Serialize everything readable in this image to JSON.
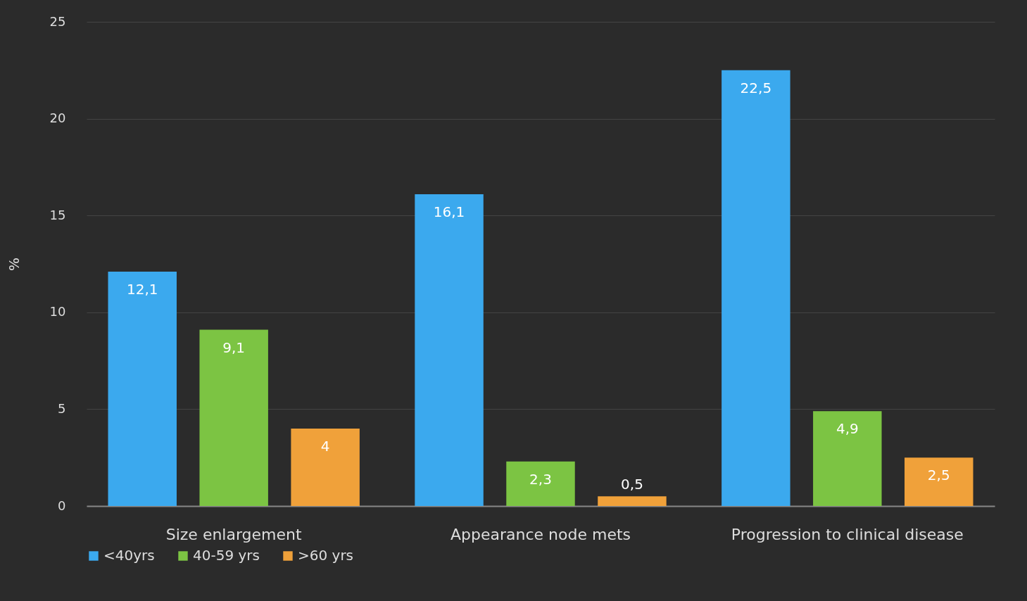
{
  "chart_data": {
    "type": "bar",
    "ylabel": "%",
    "categories": [
      "Size enlargement",
      "Appearance node mets",
      "Progression to clinical disease"
    ],
    "series": [
      {
        "name": "<40yrs",
        "color": "#3ba9ee",
        "values": [
          12.1,
          16.1,
          22.5
        ],
        "value_labels": [
          "12,1",
          "16,1",
          "22,5"
        ]
      },
      {
        "name": "40-59 yrs",
        "color": "#7cc443",
        "values": [
          9.1,
          2.3,
          4.9
        ],
        "value_labels": [
          "9,1",
          "2,3",
          "4,9"
        ]
      },
      {
        "name": ">60 yrs",
        "color": "#f0a13a",
        "values": [
          4,
          0.5,
          2.5
        ],
        "value_labels": [
          "4",
          "0,5",
          "2,5"
        ]
      }
    ],
    "ylim": [
      0,
      25
    ],
    "yticks": [
      0,
      5,
      10,
      15,
      20,
      25
    ],
    "grid": "y",
    "legend": "bottom"
  }
}
